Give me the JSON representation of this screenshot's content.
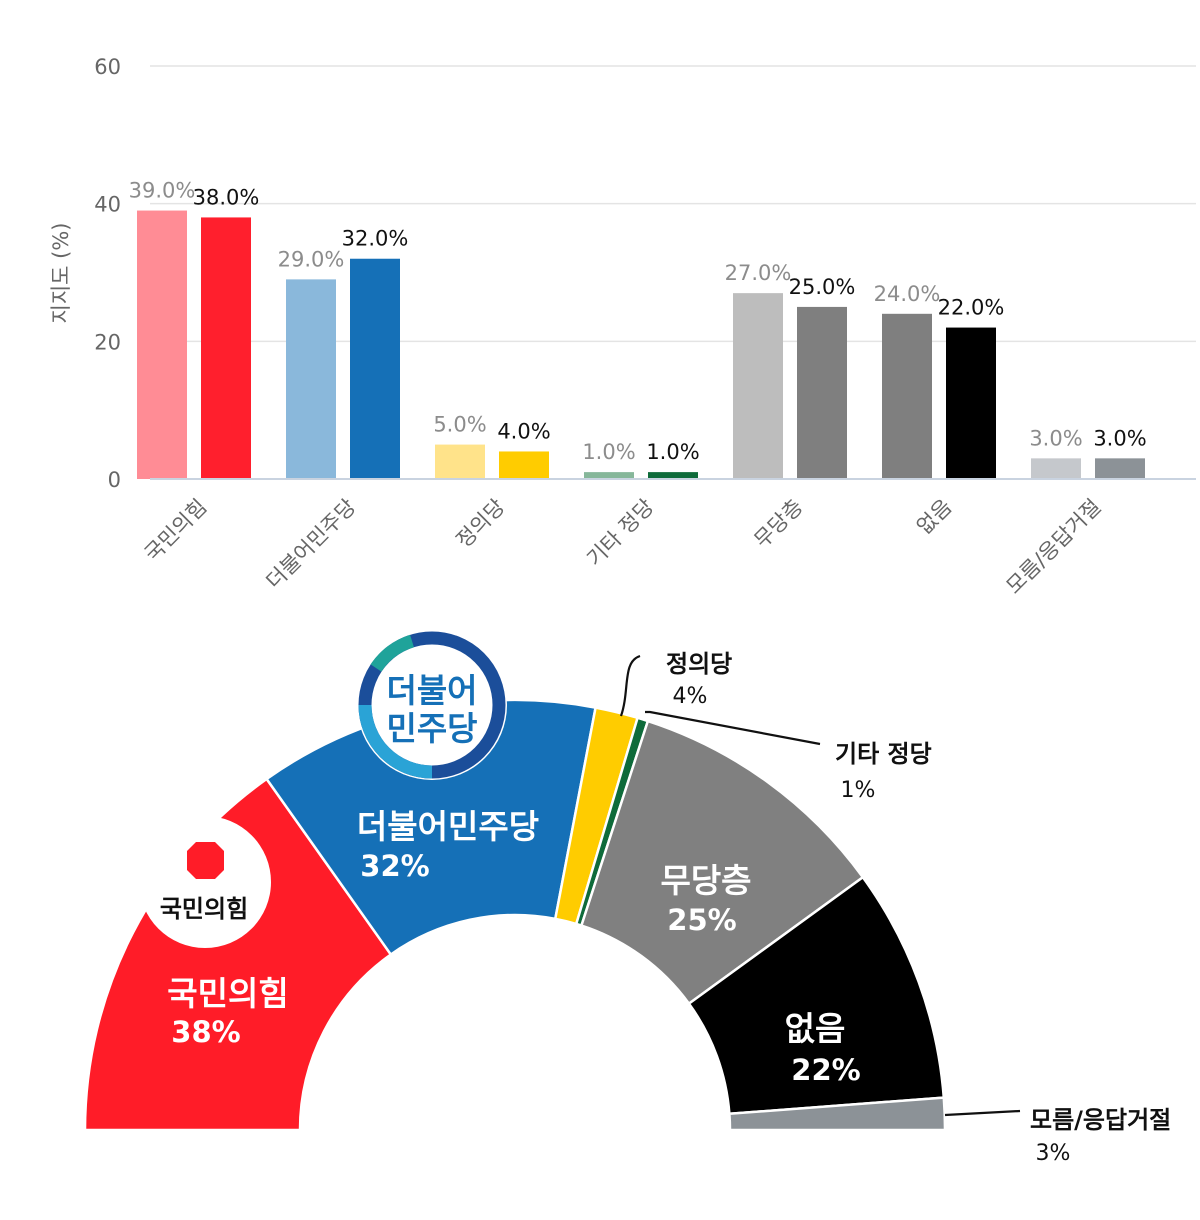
{
  "chart_data": [
    {
      "type": "bar",
      "ylabel": "지지도 (%)",
      "ylim": [
        0,
        60
      ],
      "yticks": [
        0,
        20,
        40,
        60
      ],
      "grid": true,
      "categories": [
        "국민의힘",
        "더불어민주당",
        "정의당",
        "기타 정당",
        "무당층",
        "없음",
        "모름/응답거절"
      ],
      "series": [
        {
          "values": [
            39,
            29,
            5,
            1,
            27,
            24,
            3
          ],
          "labels": [
            "39.0%",
            "29.0%",
            "5.0%",
            "1.0%",
            "27.0%",
            "24.0%",
            "3.0%"
          ],
          "colors": [
            "#ff8c95",
            "#8ab8db",
            "#ffe38a",
            "#86b79a",
            "#bdbdbd",
            "#7f7f7f",
            "#c5c8cc"
          ],
          "label_color": "#8c8c8c"
        },
        {
          "values": [
            38,
            32,
            4,
            1,
            25,
            22,
            3
          ],
          "labels": [
            "38.0%",
            "32.0%",
            "4.0%",
            "1.0%",
            "25.0%",
            "22.0%",
            "3.0%"
          ],
          "colors": [
            "#ff1f2d",
            "#1570b7",
            "#ffcc00",
            "#0e6b3a",
            "#7f7f7f",
            "#000000",
            "#8c9297"
          ],
          "label_color": "#111111"
        }
      ]
    },
    {
      "type": "pie",
      "shape": "semicircle",
      "slices": [
        {
          "label": "국민의힘",
          "pct": "38%",
          "value": 38,
          "color": "#ff1c28",
          "inside": true
        },
        {
          "label": "더불어민주당",
          "pct": "32%",
          "value": 32,
          "color": "#1570b7",
          "inside": true
        },
        {
          "label": "정의당",
          "pct": "4%",
          "value": 4,
          "color": "#ffcc00",
          "inside": false
        },
        {
          "label": "기타 정당",
          "pct": "1%",
          "value": 1,
          "color": "#0e6b3a",
          "inside": false
        },
        {
          "label": "무당층",
          "pct": "25%",
          "value": 25,
          "color": "#808080",
          "inside": true
        },
        {
          "label": "없음",
          "pct": "22%",
          "value": 22,
          "color": "#000000",
          "inside": true
        },
        {
          "label": "모름/응답거절",
          "pct": "3%",
          "value": 3,
          "color": "#8c9297",
          "inside": false
        }
      ]
    }
  ],
  "logos": {
    "ppp": {
      "text": "국민의힘",
      "icon": "ppp-party-logo-icon"
    },
    "dp": {
      "line1": "더불어",
      "line2": "민주당",
      "icon": "dp-party-logo-icon"
    }
  }
}
